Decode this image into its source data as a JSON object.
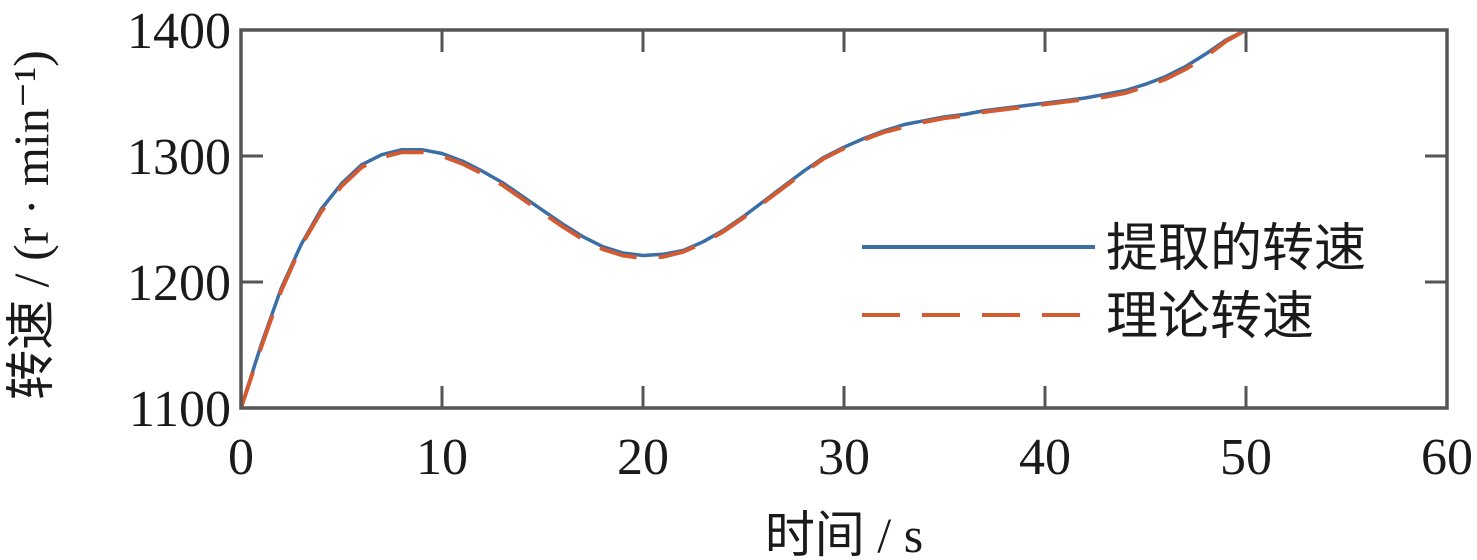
{
  "chart_data": {
    "type": "line",
    "xlabel": "时间 / s",
    "ylabel": "转速 / (r · min⁻¹)",
    "xlim": [
      0,
      60
    ],
    "ylim": [
      1100,
      1400
    ],
    "xticks": [
      "0",
      "10",
      "20",
      "30",
      "40",
      "50",
      "60"
    ],
    "yticks": [
      "1100",
      "1200",
      "1300",
      "1400"
    ],
    "grid": false,
    "legend_position": "right",
    "series": [
      {
        "name": "提取的转速",
        "color": "#3a6ea5",
        "style": "solid",
        "x": [
          0,
          1,
          2,
          3,
          4,
          5,
          6,
          7,
          8,
          9,
          10,
          11,
          12,
          13,
          14,
          15,
          16,
          17,
          18,
          19,
          20,
          21,
          22,
          23,
          24,
          25,
          26,
          27,
          28,
          29,
          30,
          31,
          32,
          33,
          34,
          35,
          36,
          37,
          38,
          39,
          40,
          41,
          42,
          43,
          44,
          45,
          46,
          47,
          48,
          49,
          50
        ],
        "y": [
          1100,
          1150,
          1195,
          1230,
          1258,
          1278,
          1293,
          1301,
          1305,
          1305,
          1302,
          1296,
          1288,
          1279,
          1268,
          1257,
          1246,
          1236,
          1228,
          1223,
          1221,
          1222,
          1225,
          1232,
          1241,
          1252,
          1264,
          1276,
          1288,
          1299,
          1307,
          1314,
          1320,
          1325,
          1328,
          1331,
          1333,
          1336,
          1338,
          1340,
          1342,
          1344,
          1346,
          1349,
          1352,
          1357,
          1363,
          1371,
          1381,
          1392,
          1400
        ]
      },
      {
        "name": "理论转速",
        "color": "#d45a30",
        "style": "dashed",
        "x": [
          0,
          1,
          2,
          3,
          4,
          5,
          6,
          7,
          8,
          9,
          10,
          11,
          12,
          13,
          14,
          15,
          16,
          17,
          18,
          19,
          20,
          21,
          22,
          23,
          24,
          25,
          26,
          27,
          28,
          29,
          30,
          31,
          32,
          33,
          34,
          35,
          36,
          37,
          38,
          39,
          40,
          41,
          42,
          43,
          44,
          45,
          46,
          47,
          48,
          49,
          50
        ],
        "y": [
          1100,
          1148,
          1193,
          1229,
          1256,
          1276,
          1291,
          1299,
          1303,
          1303,
          1300,
          1294,
          1286,
          1277,
          1266,
          1255,
          1244,
          1234,
          1226,
          1221,
          1219,
          1220,
          1224,
          1231,
          1240,
          1251,
          1263,
          1275,
          1287,
          1298,
          1306,
          1313,
          1319,
          1323,
          1327,
          1330,
          1332,
          1335,
          1337,
          1339,
          1341,
          1343,
          1345,
          1347,
          1350,
          1355,
          1361,
          1369,
          1379,
          1391,
          1400
        ]
      }
    ]
  }
}
